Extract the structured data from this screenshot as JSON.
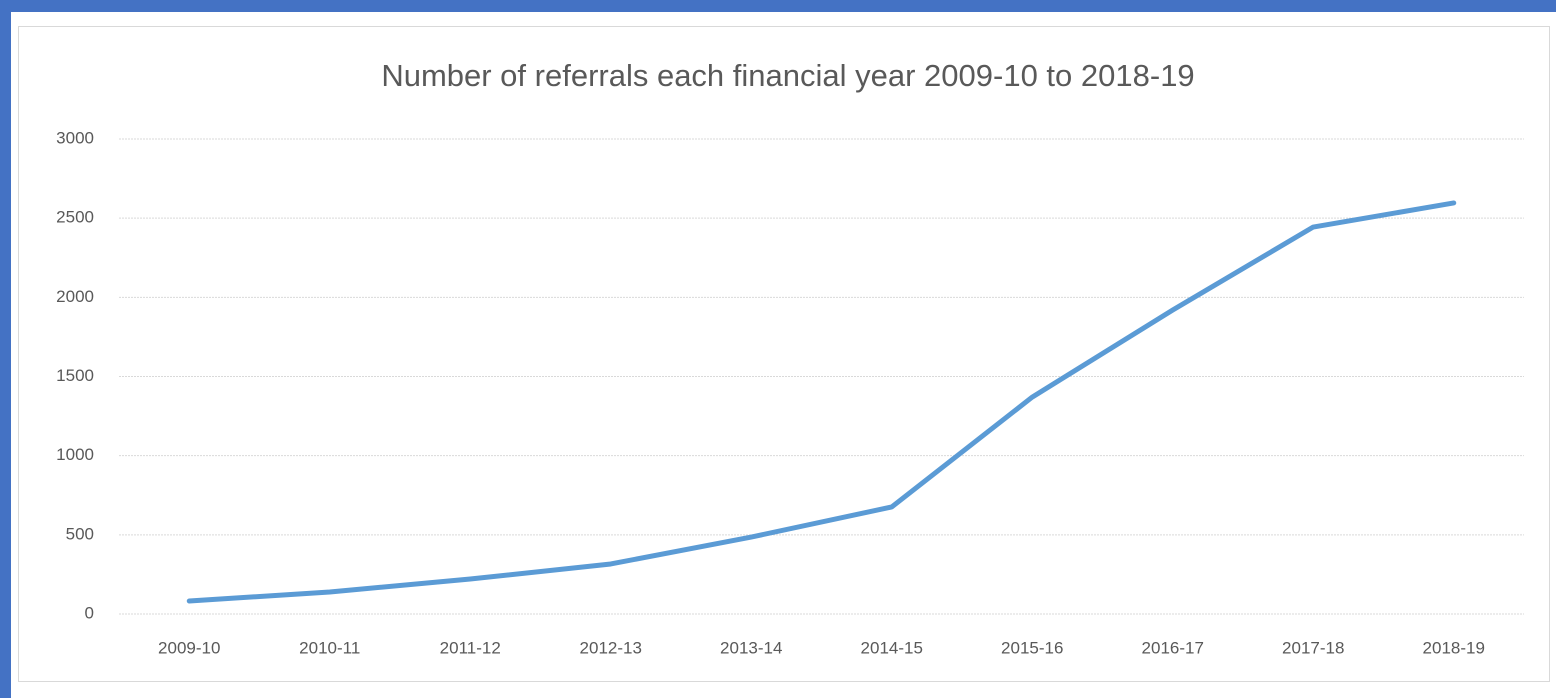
{
  "chart_data": {
    "type": "line",
    "title": "Number of referrals each financial year 2009-10 to 2018-19",
    "categories": [
      "2009-10",
      "2010-11",
      "2011-12",
      "2012-13",
      "2013-14",
      "2014-15",
      "2015-16",
      "2016-17",
      "2017-18",
      "2018-19"
    ],
    "values": [
      82,
      139,
      221,
      316,
      486,
      676,
      1370,
      1920,
      2444,
      2596
    ],
    "color": "#5b9bd5",
    "ylim": [
      0,
      3000
    ],
    "yticks": [
      0,
      500,
      1000,
      1500,
      2000,
      2500,
      3000
    ],
    "grid": true
  }
}
